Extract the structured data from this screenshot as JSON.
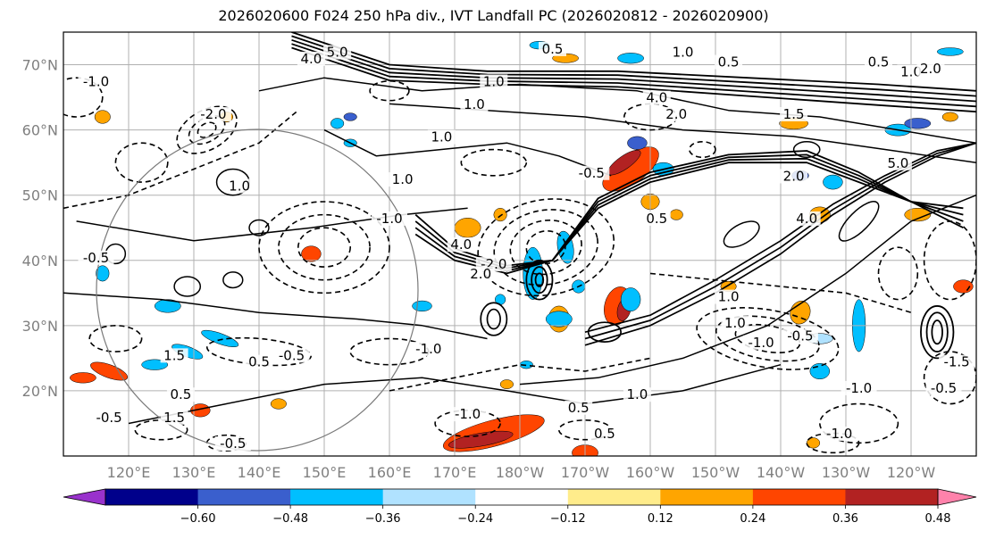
{
  "chart_data": {
    "type": "heatmap",
    "title": "2026020600 F024 250 hPa div., IVT Landfall PC (2026020812 - 2026020900)",
    "x_ticks": [
      "120°E",
      "130°E",
      "140°E",
      "150°E",
      "160°E",
      "170°E",
      "180°W",
      "170°W",
      "160°W",
      "150°W",
      "140°W",
      "130°W",
      "120°W"
    ],
    "y_ticks": [
      "20°N",
      "30°N",
      "40°N",
      "50°N",
      "60°N",
      "70°N"
    ],
    "lon_range": [
      110,
      250
    ],
    "lat_range": [
      10,
      75
    ],
    "colorbar": {
      "levels": [
        -0.6,
        -0.48,
        -0.36,
        -0.24,
        -0.12,
        0.12,
        0.24,
        0.36,
        0.48,
        0.6
      ],
      "labels": [
        "−0.60",
        "−0.48",
        "−0.36",
        "−0.24",
        "−0.12",
        "0.12",
        "0.24",
        "0.36",
        "0.48",
        "0.60"
      ],
      "colors": [
        "#9932cc",
        "#00008b",
        "#3a5fcd",
        "#00bfff",
        "#b0e2ff",
        "#ffffff",
        "#ffec8b",
        "#ffa500",
        "#ff4500",
        "#b22222",
        "#ff82ab"
      ],
      "extend": "both"
    },
    "contour_labels": [
      {
        "text": "5.0",
        "lon": 152,
        "lat": 71.5
      },
      {
        "text": "4.0",
        "lon": 148,
        "lat": 70.5
      },
      {
        "text": "0.5",
        "lon": 185,
        "lat": 72
      },
      {
        "text": "1.0",
        "lon": 205,
        "lat": 71.5
      },
      {
        "text": "0.5",
        "lon": 212,
        "lat": 70
      },
      {
        "text": "0.5",
        "lon": 235,
        "lat": 70
      },
      {
        "text": "1.0",
        "lon": 240,
        "lat": 68.5
      },
      {
        "text": "2.0",
        "lon": 243,
        "lat": 69
      },
      {
        "text": "1.0",
        "lon": 176,
        "lat": 67
      },
      {
        "text": "4.0",
        "lon": 201,
        "lat": 64.5
      },
      {
        "text": "2.0",
        "lon": 204,
        "lat": 62
      },
      {
        "text": "1.5",
        "lon": 222,
        "lat": 62
      },
      {
        "text": "1.0",
        "lon": 173,
        "lat": 63.5
      },
      {
        "text": "-1.0",
        "lon": 115,
        "lat": 67
      },
      {
        "text": "-2.0",
        "lon": 133,
        "lat": 62
      },
      {
        "text": "1.0",
        "lon": 168,
        "lat": 58.5
      },
      {
        "text": "-0.5",
        "lon": 191,
        "lat": 53
      },
      {
        "text": "2.0",
        "lon": 222,
        "lat": 52.5
      },
      {
        "text": "5.0",
        "lon": 238,
        "lat": 54.5
      },
      {
        "text": "1.0",
        "lon": 162,
        "lat": 52
      },
      {
        "text": "4.0",
        "lon": 171,
        "lat": 42
      },
      {
        "text": "1.0",
        "lon": 137,
        "lat": 51
      },
      {
        "text": "-1.0",
        "lon": 160,
        "lat": 46
      },
      {
        "text": "0.5",
        "lon": 201,
        "lat": 46
      },
      {
        "text": "4.0",
        "lon": 224,
        "lat": 46
      },
      {
        "text": "-0.5",
        "lon": 115,
        "lat": 40
      },
      {
        "text": "-2.0",
        "lon": 176,
        "lat": 39
      },
      {
        "text": "2.0",
        "lon": 174,
        "lat": 37.5
      },
      {
        "text": "1.0",
        "lon": 212,
        "lat": 34
      },
      {
        "text": "1.0",
        "lon": 213,
        "lat": 30
      },
      {
        "text": "-1.0",
        "lon": 217,
        "lat": 27
      },
      {
        "text": "-0.5",
        "lon": 223,
        "lat": 28
      },
      {
        "text": "-0.5",
        "lon": 145,
        "lat": 25
      },
      {
        "text": "-1.0",
        "lon": 166,
        "lat": 26
      },
      {
        "text": "0.5",
        "lon": 140,
        "lat": 24
      },
      {
        "text": "1.5",
        "lon": 127,
        "lat": 25
      },
      {
        "text": "0.5",
        "lon": 128,
        "lat": 19
      },
      {
        "text": "-0.5",
        "lon": 117,
        "lat": 15.5
      },
      {
        "text": "1.5",
        "lon": 127,
        "lat": 15.5
      },
      {
        "text": "-0.5",
        "lon": 136,
        "lat": 11.5
      },
      {
        "text": "1.0",
        "lon": 198,
        "lat": 19
      },
      {
        "text": "-1.0",
        "lon": 172,
        "lat": 16
      },
      {
        "text": "0.5",
        "lon": 189,
        "lat": 17
      },
      {
        "text": "0.5",
        "lon": 193,
        "lat": 13
      },
      {
        "text": "-1.0",
        "lon": 229,
        "lat": 13
      },
      {
        "text": "-1.0",
        "lon": 232,
        "lat": 20
      },
      {
        "text": "-0.5",
        "lon": 245,
        "lat": 20
      },
      {
        "text": "-1.5",
        "lon": 247,
        "lat": 24
      }
    ]
  }
}
